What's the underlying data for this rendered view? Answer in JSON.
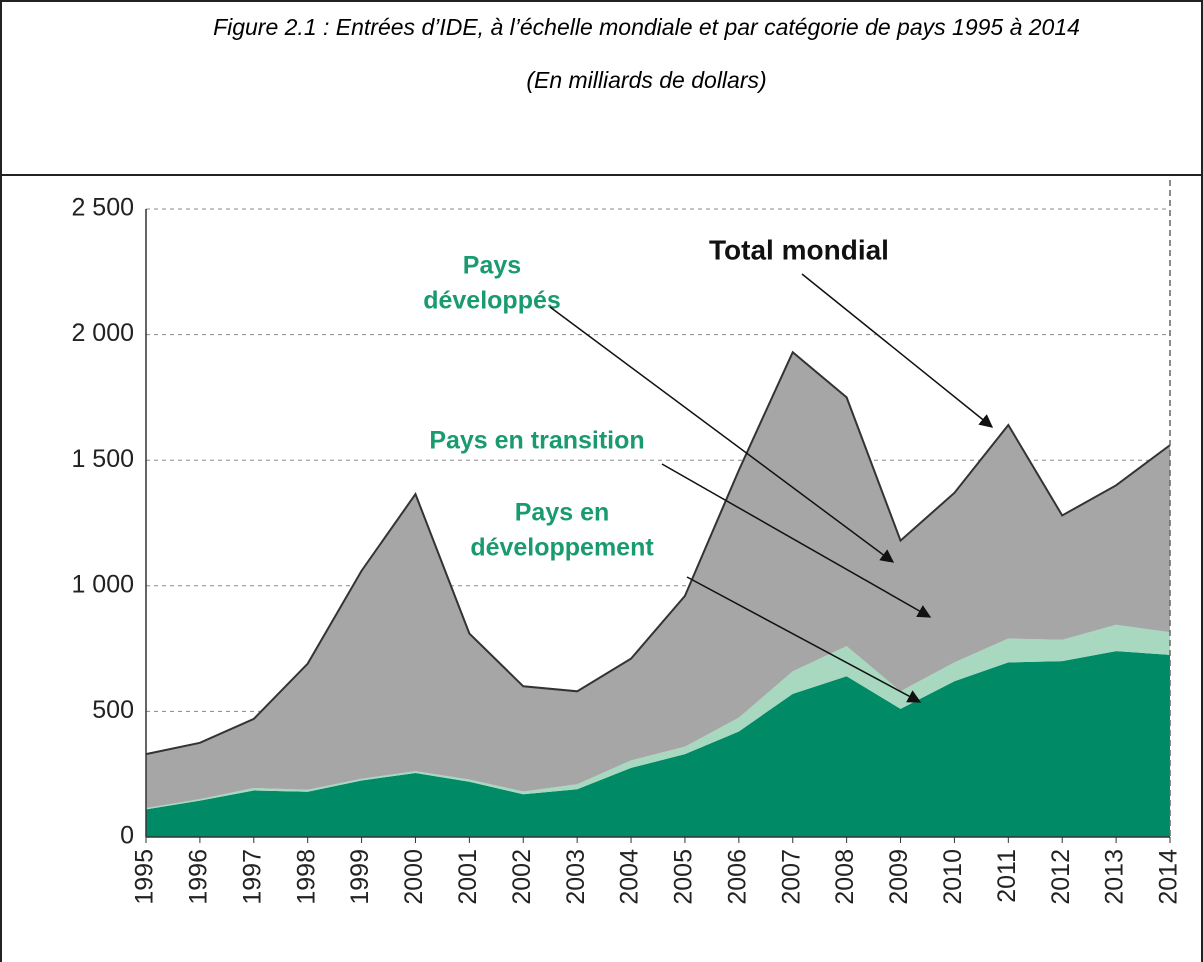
{
  "chart_data": {
    "type": "stacked_area",
    "title": "Figure 2.1 : Entrées d’IDE, à l’échelle mondiale et par catégorie de pays 1995 à 2014",
    "subtitle": "(En milliards de dollars)",
    "categories": [
      "1995",
      "1996",
      "1997",
      "1998",
      "1999",
      "2000",
      "2001",
      "2002",
      "2003",
      "2004",
      "2005",
      "2006",
      "2007",
      "2008",
      "2009",
      "2010",
      "2011",
      "2012",
      "2013",
      "2014"
    ],
    "series": [
      {
        "name": "Pays en développement",
        "color": "#008a66",
        "values": [
          110,
          145,
          185,
          180,
          225,
          255,
          220,
          170,
          190,
          275,
          330,
          420,
          570,
          640,
          510,
          620,
          695,
          700,
          740,
          725
        ]
      },
      {
        "name": "Pays en transition",
        "color": "#a8d8c0",
        "values": [
          5,
          6,
          10,
          8,
          7,
          7,
          9,
          11,
          20,
          30,
          30,
          55,
          90,
          120,
          70,
          75,
          95,
          85,
          105,
          90
        ]
      },
      {
        "name": "Pays développés",
        "color": "#a6a6a6",
        "values": [
          215,
          224,
          275,
          502,
          828,
          1103,
          581,
          419,
          370,
          405,
          600,
          985,
          1270,
          990,
          600,
          675,
          850,
          495,
          555,
          745
        ]
      }
    ],
    "ylim": [
      0,
      2500
    ],
    "yticks": [
      0,
      500,
      {
        "value": 1000,
        "label": "1 000"
      },
      {
        "value": 1500,
        "label": "1 500"
      },
      {
        "value": 2000,
        "label": "2 000"
      },
      {
        "value": 2500,
        "label": "2 500"
      }
    ],
    "grid": true,
    "annotations": [
      {
        "lines": [
          "Total mondial"
        ],
        "color": "#111111"
      },
      {
        "lines": [
          "Pays",
          "développés"
        ],
        "color": "#1a9b6e"
      },
      {
        "lines": [
          "Pays en transition"
        ],
        "color": "#1a9b6e"
      },
      {
        "lines": [
          "Pays en",
          "développement"
        ],
        "color": "#1a9b6e"
      }
    ]
  }
}
